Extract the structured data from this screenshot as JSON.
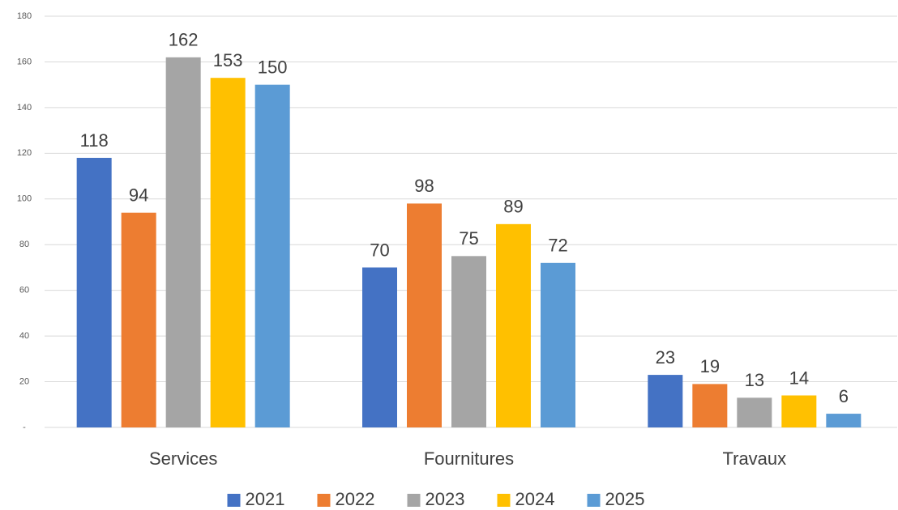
{
  "chart_data": {
    "type": "bar",
    "categories": [
      "Services",
      "Fournitures",
      "Travaux"
    ],
    "series": [
      {
        "name": "2021",
        "color": "#4472c4",
        "values": [
          118,
          70,
          23
        ]
      },
      {
        "name": "2022",
        "color": "#ed7d31",
        "values": [
          94,
          98,
          19
        ]
      },
      {
        "name": "2023",
        "color": "#a5a5a5",
        "values": [
          162,
          75,
          13
        ]
      },
      {
        "name": "2024",
        "color": "#ffc000",
        "values": [
          153,
          89,
          14
        ]
      },
      {
        "name": "2025",
        "color": "#5b9bd5",
        "values": [
          150,
          72,
          6
        ]
      }
    ],
    "ylim": [
      0,
      180
    ],
    "yticks": [
      {
        "value": 0,
        "label": "-"
      },
      20,
      40,
      60,
      80,
      100,
      120,
      140,
      160,
      180
    ],
    "grid": true,
    "legend": "bottom"
  }
}
